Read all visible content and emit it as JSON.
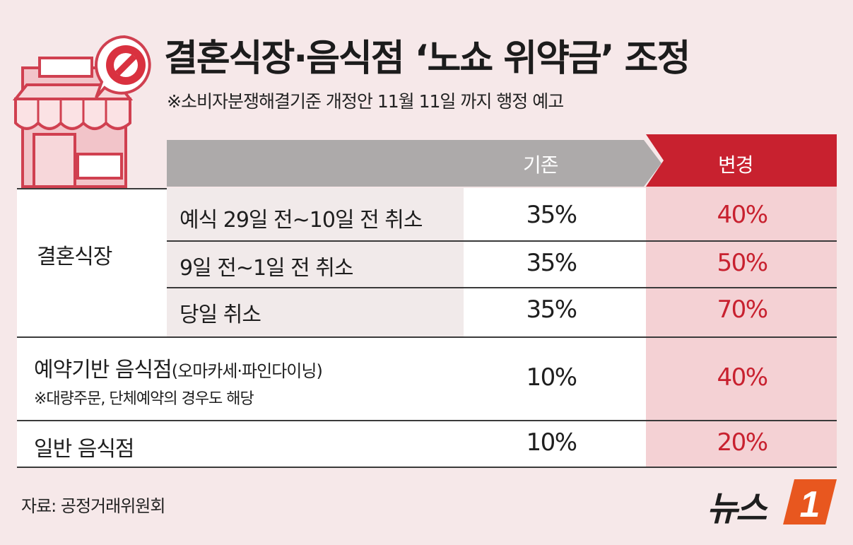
{
  "title": "결혼식장·음식점 ‘노쇼 위약금’ 조정",
  "subtitle": "※소비자분쟁해결기준 개정안 11월 11일 까지 행정 예고",
  "header": {
    "before": "기존",
    "after": "변경"
  },
  "wedding": {
    "category": "결혼식장",
    "rows": [
      {
        "label": "예식 29일 전~10일 전 취소",
        "before": "35%",
        "after": "40%"
      },
      {
        "label": "9일 전~1일 전 취소",
        "before": "35%",
        "after": "50%"
      },
      {
        "label": "당일 취소",
        "before": "35%",
        "after": "70%"
      }
    ]
  },
  "reservation": {
    "label": "예약기반 음식점",
    "label_paren": "(오마카세·파인다이닝)",
    "note": "※대량주문, 단체예약의 경우도 해당",
    "before": "10%",
    "after": "40%"
  },
  "general": {
    "label": "일반 음식점",
    "before": "10%",
    "after": "20%"
  },
  "source": "자료: 공정거래위원회",
  "logo": {
    "text": "뉴스",
    "mark": "1"
  },
  "colors": {
    "accent": "#c8212f",
    "header_gray": "#adaaaa",
    "background": "#f6e8e9"
  },
  "icons": [
    "store-icon",
    "no-sign-icon"
  ]
}
